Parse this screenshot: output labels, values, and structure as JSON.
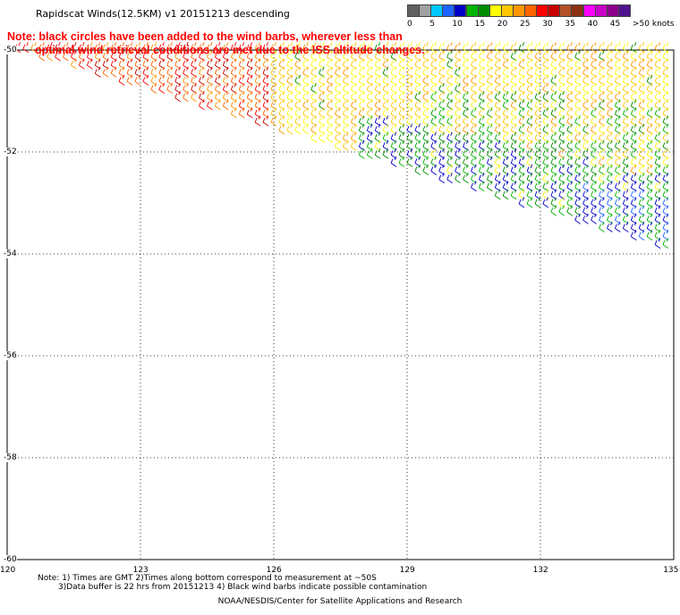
{
  "title": "Rapidscat Winds(12.5KM) v1 20151213 descending",
  "note": {
    "line1": "Note: black circles have been added to the wind barbs, wherever less than",
    "line2": "optimal wind retrieval conditions are met due to the ISS altitude changes."
  },
  "colorbar": {
    "unit_label": "knots",
    "labels": [
      "0",
      "5",
      "10",
      "15",
      "20",
      "25",
      "30",
      "35",
      "40",
      "45",
      ">50"
    ],
    "colors": [
      "#606060",
      "#a0a0a0",
      "#00c8ff",
      "#1e64ff",
      "#0000c8",
      "#00b400",
      "#008c00",
      "#ffff00",
      "#ffc800",
      "#ff9600",
      "#ff6400",
      "#ff0000",
      "#c80000",
      "#b4502a",
      "#8c3214",
      "#ff00ff",
      "#c800c8",
      "#8c008c",
      "#50148c"
    ]
  },
  "axes": {
    "y_ticks": [
      "-50",
      "-52",
      "-54",
      "-56",
      "-58",
      "-60"
    ],
    "x_ticks": [
      "120",
      "123",
      "126",
      "129",
      "132",
      "135"
    ],
    "lat_range": [
      -60,
      -50
    ],
    "lon_range": [
      120,
      135
    ]
  },
  "footnote": {
    "line1": "Note: 1) Times are GMT 2)Times along bottom correspond to measurement at ~50S",
    "line2": "3)Data buffer is 22 hrs from 20151213 4) Black wind barbs indicate possible contamination"
  },
  "credit": "NOAA/NESDIS/Center for Satellite Applications and Research",
  "wind_swath": {
    "direction": "descending",
    "speed_zones_knots": [
      {
        "zone": "western edge",
        "speed_range": [
          25,
          35
        ]
      },
      {
        "zone": "central",
        "speed_range": [
          20,
          25
        ]
      },
      {
        "zone": "southern edge",
        "speed_range": [
          10,
          20
        ]
      }
    ]
  }
}
